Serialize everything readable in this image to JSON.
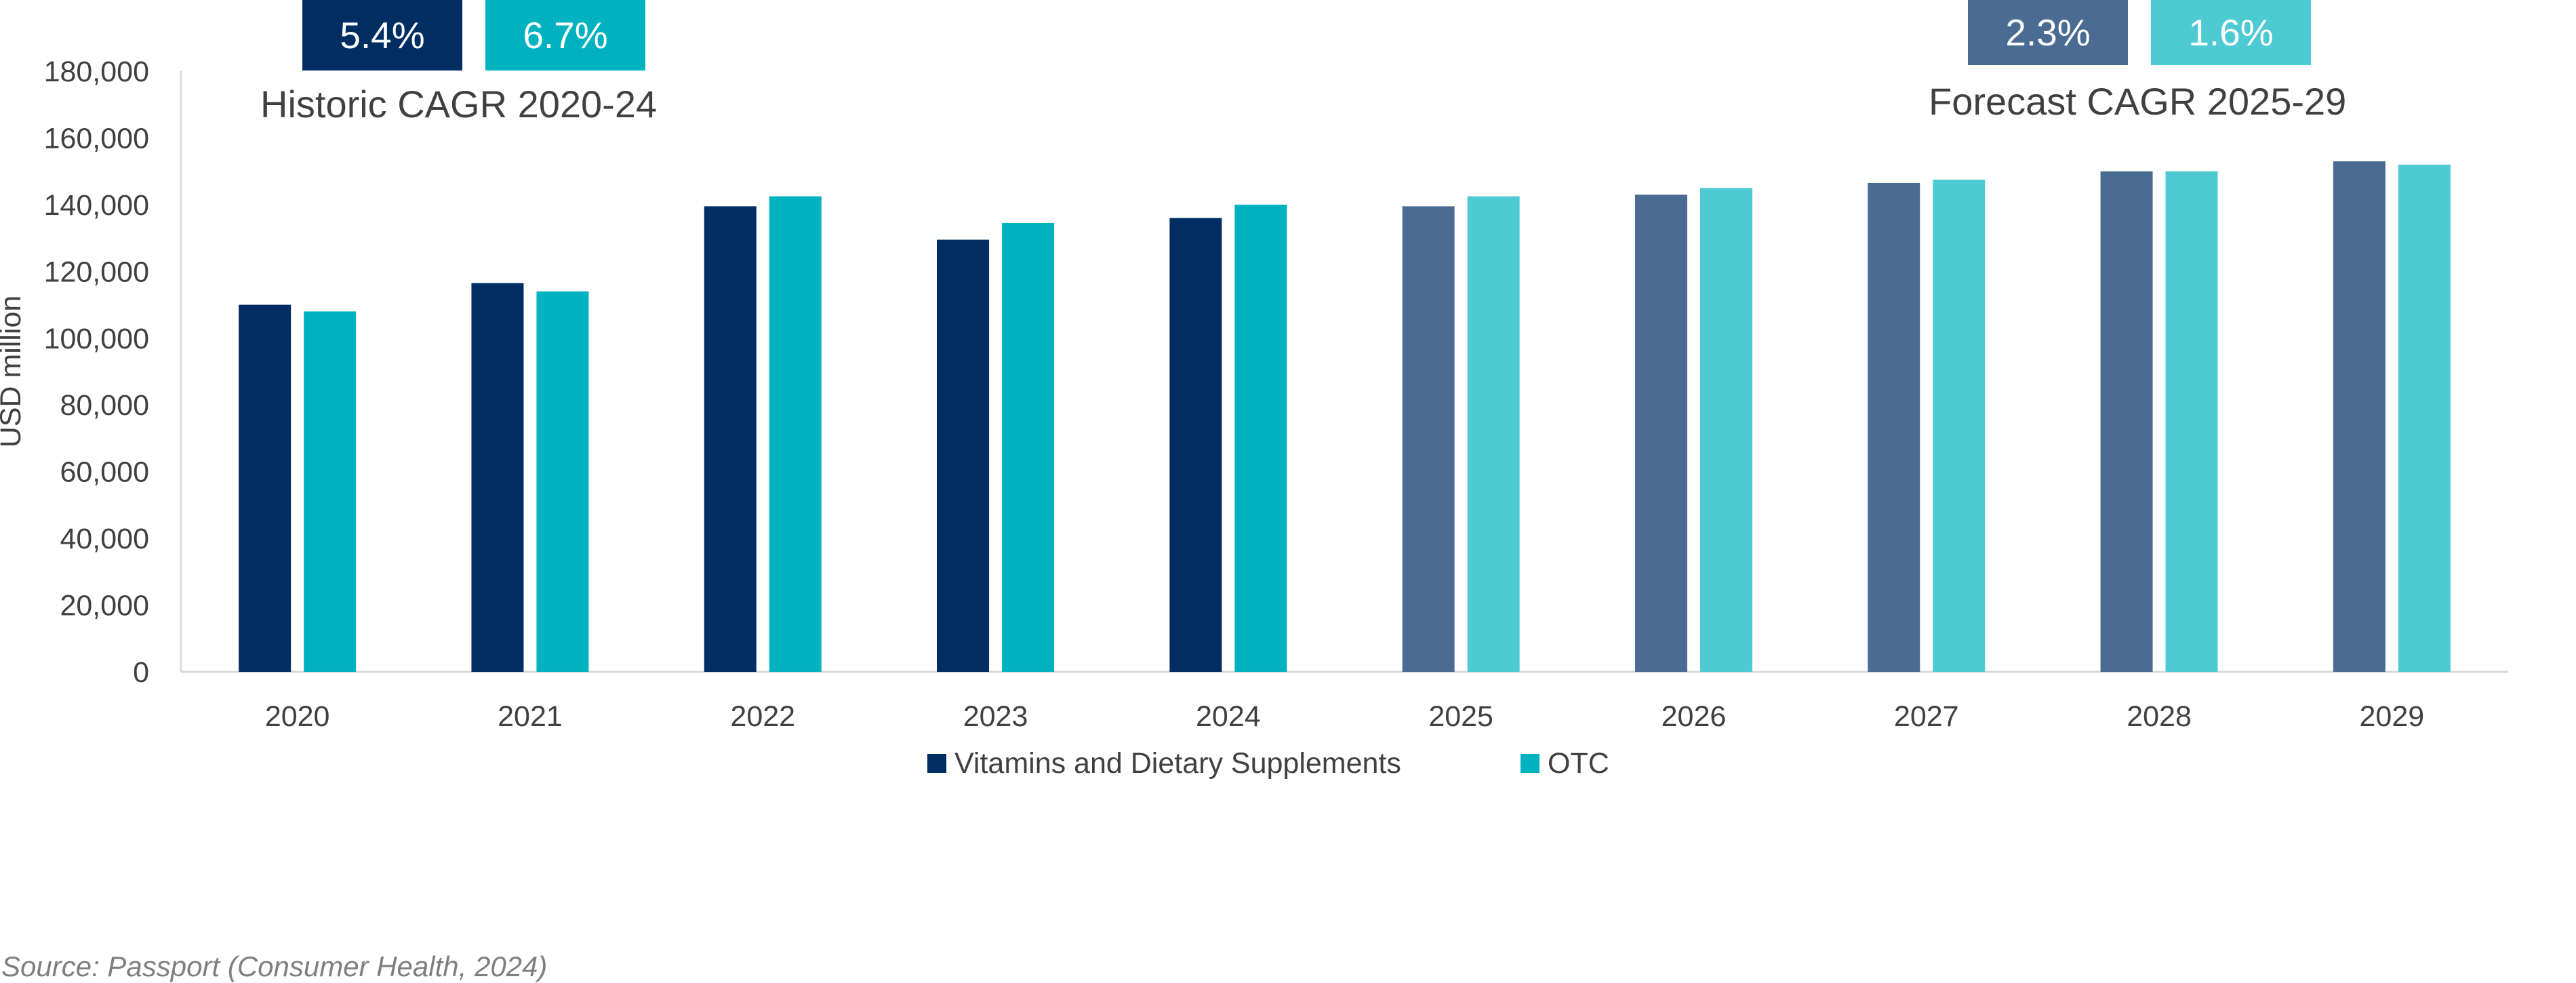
{
  "chart_data": {
    "type": "bar",
    "ylabel": "USD million",
    "ylim": [
      0,
      180000
    ],
    "yticks": [
      0,
      20000,
      40000,
      60000,
      80000,
      100000,
      120000,
      140000,
      160000,
      180000
    ],
    "ytick_labels": [
      "0",
      "20,000",
      "40,000",
      "60,000",
      "80,000",
      "100,000",
      "120,000",
      "140,000",
      "160,000",
      "180,000"
    ],
    "categories": [
      "2020",
      "2021",
      "2022",
      "2023",
      "2024",
      "2025",
      "2026",
      "2027",
      "2028",
      "2029"
    ],
    "series": [
      {
        "name": "Vitamins and Dietary Supplements",
        "values": [
          110000,
          116500,
          139500,
          129500,
          136000,
          139500,
          143000,
          146500,
          150000,
          153000
        ],
        "color_historic": "#002d62",
        "color_forecast": "#4a6b92"
      },
      {
        "name": "OTC",
        "values": [
          108000,
          114000,
          142500,
          134500,
          140000,
          142500,
          145000,
          147500,
          150000,
          152000
        ],
        "color_historic": "#00b2bf",
        "color_forecast": "#4ecad3"
      }
    ],
    "historic_categories": [
      "2020",
      "2021",
      "2022",
      "2023",
      "2024"
    ],
    "forecast_categories": [
      "2025",
      "2026",
      "2027",
      "2028",
      "2029"
    ],
    "grid": false,
    "legend_position": "bottom",
    "annotations": {
      "historic": {
        "title": "Historic CAGR 2020-24",
        "badges": [
          {
            "label": "5.4%",
            "color": "#002d62"
          },
          {
            "label": "6.7%",
            "color": "#00b2bf"
          }
        ]
      },
      "forecast": {
        "title": "Forecast CAGR 2025-29",
        "badges": [
          {
            "label": "2.3%",
            "color": "#4a6b92"
          },
          {
            "label": "1.6%",
            "color": "#4ecad3"
          }
        ]
      }
    }
  },
  "source": "Source: Passport (Consumer Health, 2024)"
}
